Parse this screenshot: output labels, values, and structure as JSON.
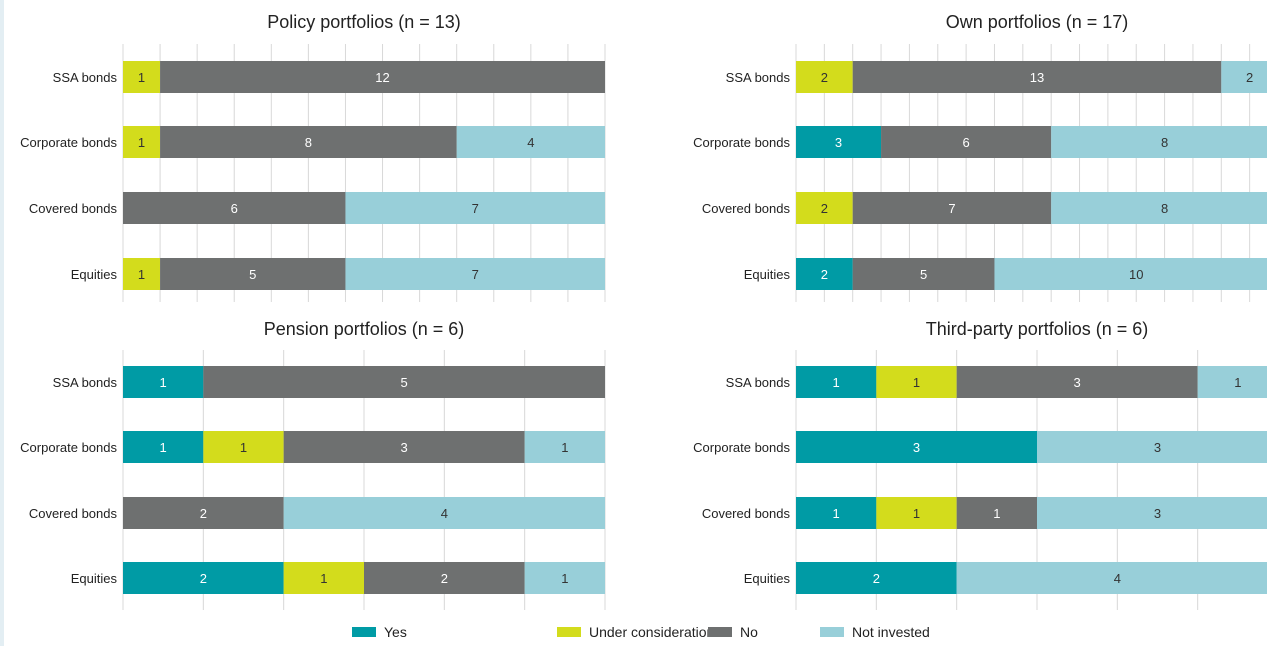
{
  "colors": {
    "yes": "#009ba5",
    "under": "#d3dc1c",
    "no": "#6e7070",
    "not": "#98cfd9",
    "grid": "#d8d8d8",
    "label_light": "#ffffff",
    "label_dark": "#333333"
  },
  "legend": [
    {
      "key": "yes",
      "label": "Yes"
    },
    {
      "key": "under",
      "label": "Under consideration"
    },
    {
      "key": "no",
      "label": "No"
    },
    {
      "key": "not",
      "label": "Not invested"
    }
  ],
  "chart_data": [
    {
      "type": "bar",
      "orientation": "horizontal-stacked",
      "title": "Policy portfolios (n = 13)",
      "total": 13,
      "categories": [
        "SSA bonds",
        "Corporate bonds",
        "Covered bonds",
        "Equities"
      ],
      "series": [
        {
          "key": "yes",
          "name": "Yes",
          "values": [
            0,
            0,
            0,
            0
          ]
        },
        {
          "key": "under",
          "name": "Under consideration",
          "values": [
            1,
            1,
            0,
            1
          ]
        },
        {
          "key": "no",
          "name": "No",
          "values": [
            12,
            8,
            6,
            5
          ]
        },
        {
          "key": "not",
          "name": "Not invested",
          "values": [
            0,
            4,
            7,
            7
          ]
        }
      ]
    },
    {
      "type": "bar",
      "orientation": "horizontal-stacked",
      "title": "Own portfolios (n = 17)",
      "total": 17,
      "categories": [
        "SSA bonds",
        "Corporate bonds",
        "Covered bonds",
        "Equities"
      ],
      "series": [
        {
          "key": "yes",
          "name": "Yes",
          "values": [
            0,
            3,
            0,
            2
          ]
        },
        {
          "key": "under",
          "name": "Under consideration",
          "values": [
            2,
            0,
            2,
            0
          ]
        },
        {
          "key": "no",
          "name": "No",
          "values": [
            13,
            6,
            7,
            5
          ]
        },
        {
          "key": "not",
          "name": "Not invested",
          "values": [
            2,
            8,
            8,
            10
          ]
        }
      ]
    },
    {
      "type": "bar",
      "orientation": "horizontal-stacked",
      "title": "Pension portfolios (n = 6)",
      "total": 6,
      "categories": [
        "SSA bonds",
        "Corporate bonds",
        "Covered bonds",
        "Equities"
      ],
      "series": [
        {
          "key": "yes",
          "name": "Yes",
          "values": [
            1,
            1,
            0,
            2
          ]
        },
        {
          "key": "under",
          "name": "Under consideration",
          "values": [
            0,
            1,
            0,
            1
          ]
        },
        {
          "key": "no",
          "name": "No",
          "values": [
            5,
            3,
            2,
            2
          ]
        },
        {
          "key": "not",
          "name": "Not invested",
          "values": [
            0,
            1,
            4,
            1
          ]
        }
      ]
    },
    {
      "type": "bar",
      "orientation": "horizontal-stacked",
      "title": "Third-party portfolios (n = 6)",
      "total": 6,
      "categories": [
        "SSA bonds",
        "Corporate bonds",
        "Covered bonds",
        "Equities"
      ],
      "series": [
        {
          "key": "yes",
          "name": "Yes",
          "values": [
            1,
            3,
            1,
            2
          ]
        },
        {
          "key": "under",
          "name": "Under consideration",
          "values": [
            1,
            0,
            1,
            0
          ]
        },
        {
          "key": "no",
          "name": "No",
          "values": [
            3,
            0,
            1,
            0
          ]
        },
        {
          "key": "not",
          "name": "Not invested",
          "values": [
            1,
            3,
            3,
            4
          ]
        }
      ]
    }
  ]
}
